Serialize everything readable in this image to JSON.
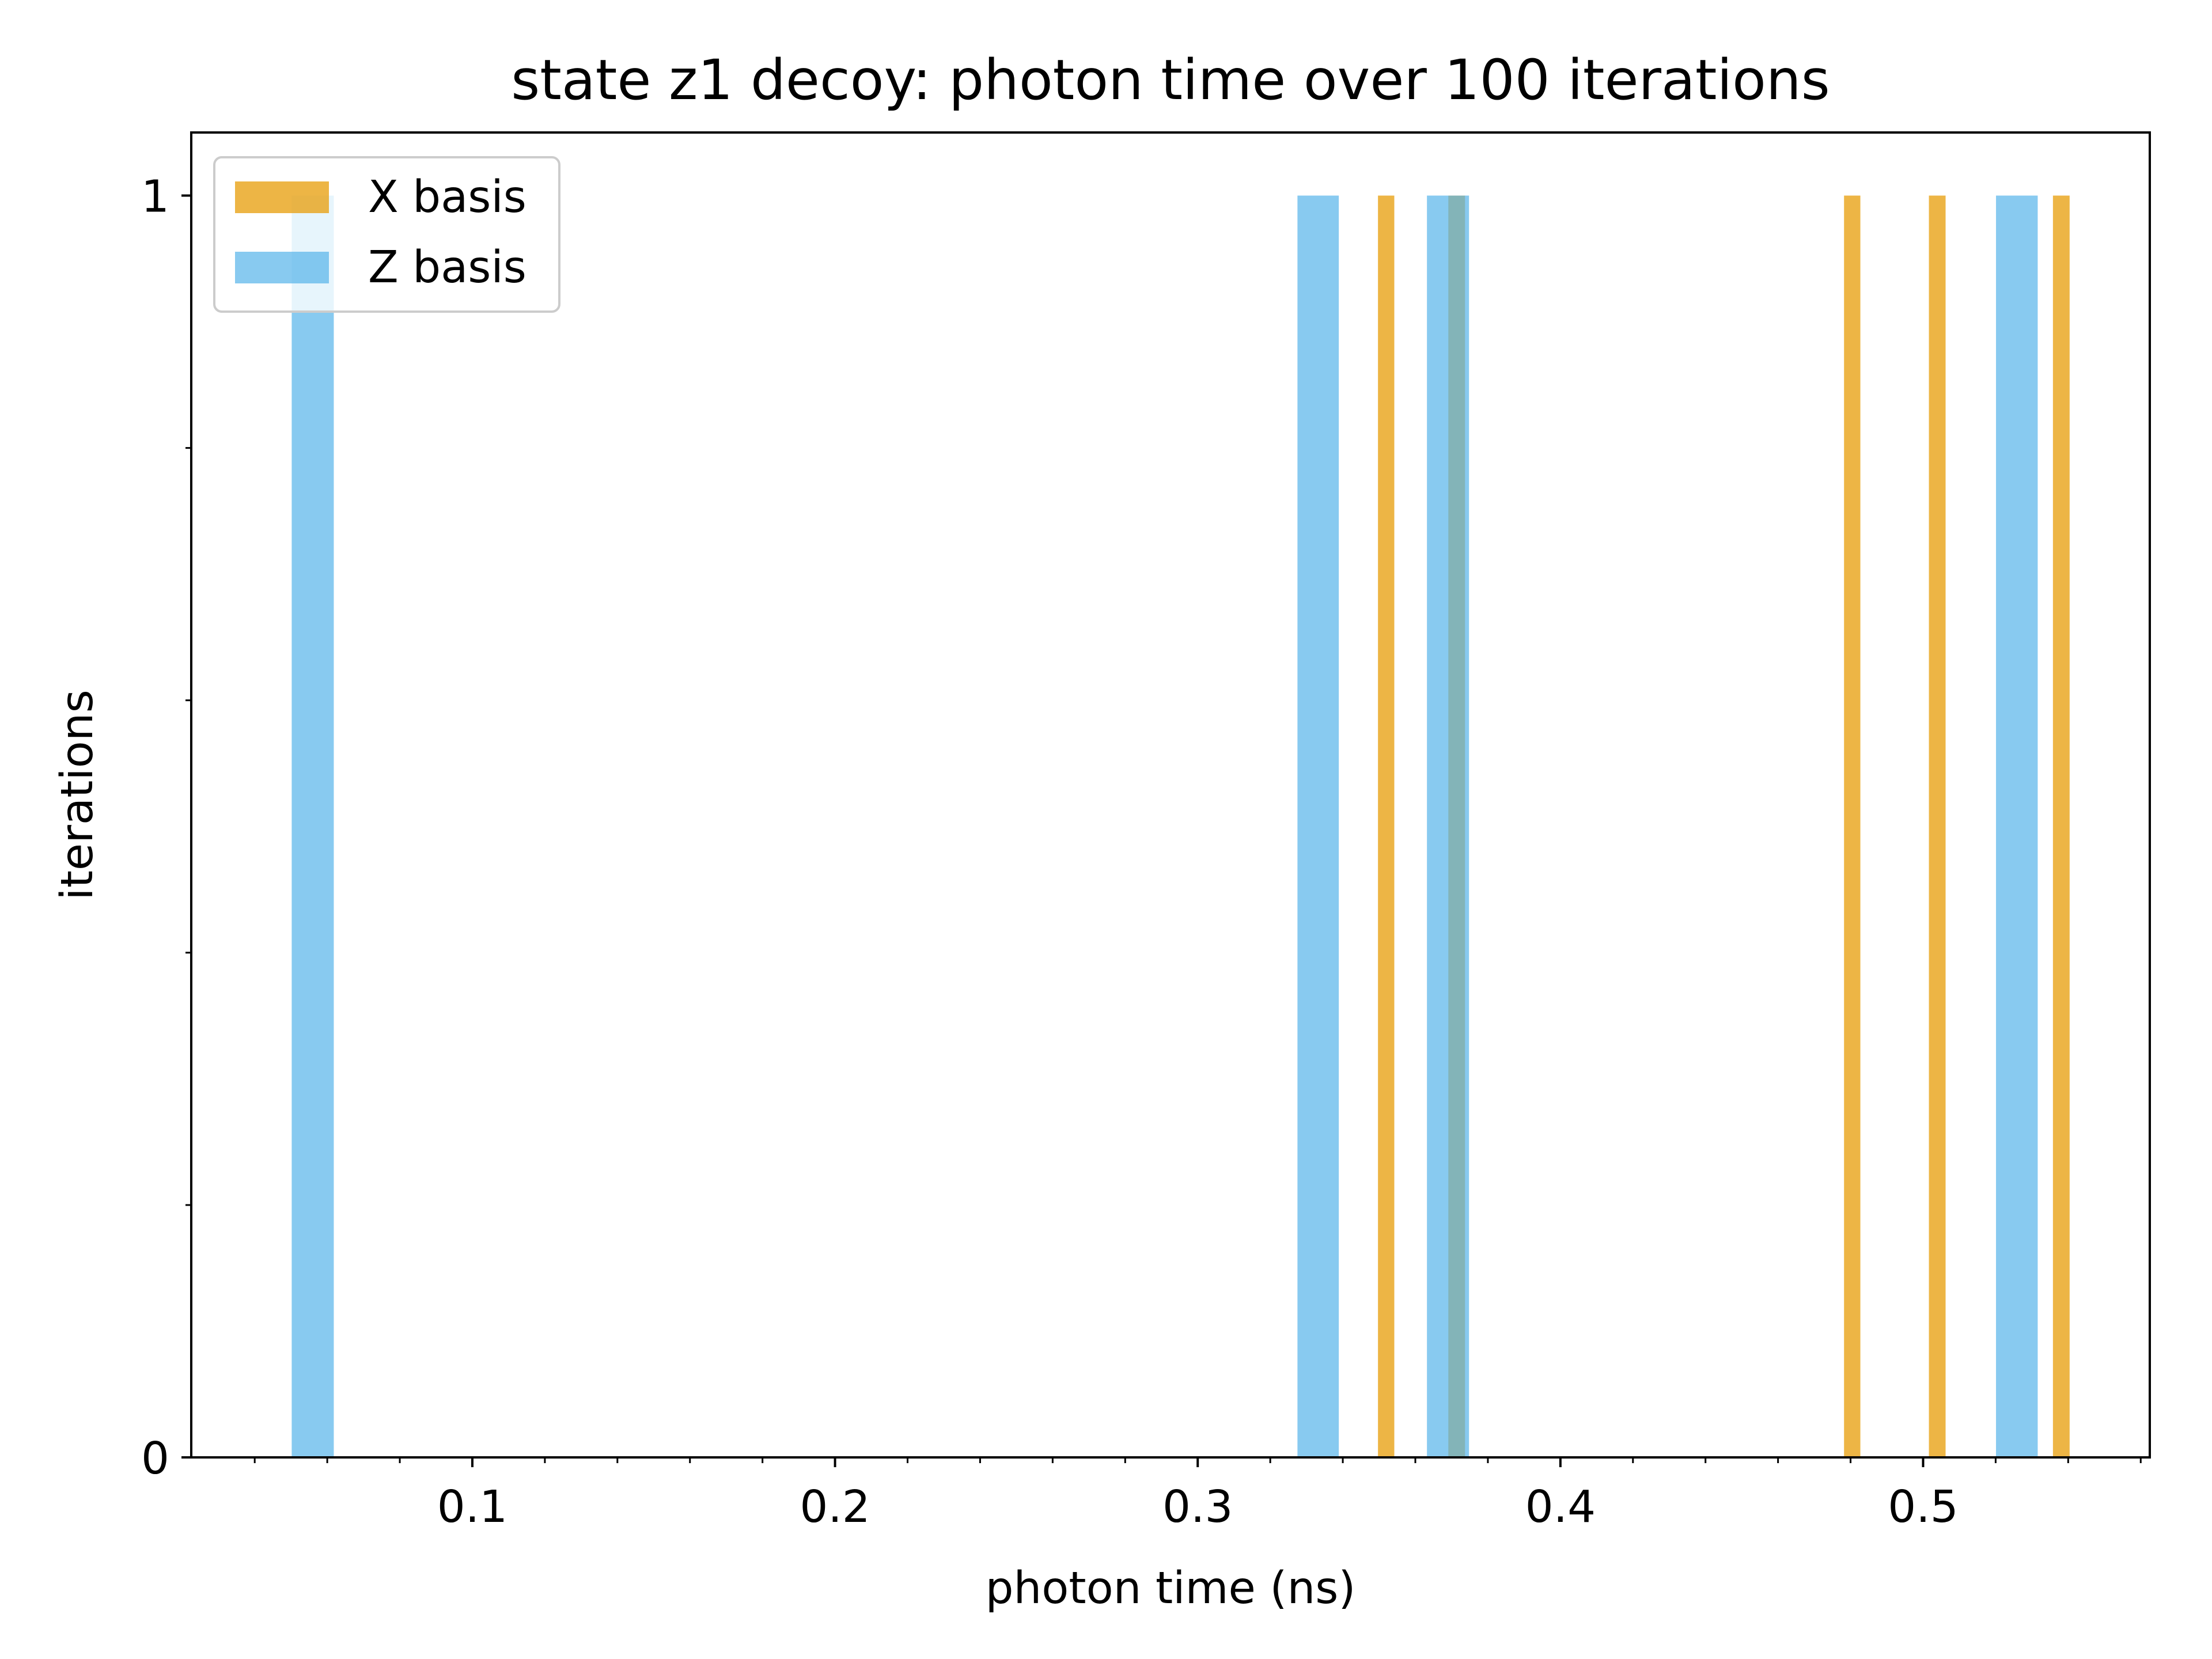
{
  "chart_data": {
    "type": "bar",
    "title": "state z1 decoy: photon time over 100 iterations",
    "xlabel": "photon time (ns)",
    "ylabel": "iterations",
    "xlim": [
      0.0225,
      0.5625
    ],
    "ylim": [
      0,
      1.05
    ],
    "x_ticks": [
      {
        "value": 0.1,
        "label": "0.1"
      },
      {
        "value": 0.2,
        "label": "0.2"
      },
      {
        "value": 0.3,
        "label": "0.3"
      },
      {
        "value": 0.4,
        "label": "0.4"
      },
      {
        "value": 0.5,
        "label": "0.5"
      }
    ],
    "x_minor_step": 0.02,
    "y_ticks": [
      {
        "value": 0,
        "label": "0"
      },
      {
        "value": 1,
        "label": "1"
      }
    ],
    "y_minor_ticks": [
      0.2,
      0.4,
      0.6,
      0.8
    ],
    "grid": false,
    "legend_position": "top-left",
    "series": [
      {
        "name": "X basis",
        "color": "#e8a317",
        "opacity": 0.8,
        "bars": [
          {
            "x0": 0.3497,
            "x1": 0.3542,
            "value": 1
          },
          {
            "x0": 0.3691,
            "x1": 0.3737,
            "value": 1
          },
          {
            "x0": 0.4782,
            "x1": 0.4827,
            "value": 1
          },
          {
            "x0": 0.5016,
            "x1": 0.5062,
            "value": 1
          },
          {
            "x0": 0.5358,
            "x1": 0.5404,
            "value": 1
          }
        ]
      },
      {
        "name": "Z basis",
        "color": "#56b4e9",
        "opacity": 0.7,
        "bars": [
          {
            "x0": 0.0502,
            "x1": 0.0618,
            "value": 1
          },
          {
            "x0": 0.3275,
            "x1": 0.3389,
            "value": 1
          },
          {
            "x0": 0.3632,
            "x1": 0.3748,
            "value": 1
          },
          {
            "x0": 0.5201,
            "x1": 0.5316,
            "value": 1
          }
        ]
      }
    ]
  }
}
